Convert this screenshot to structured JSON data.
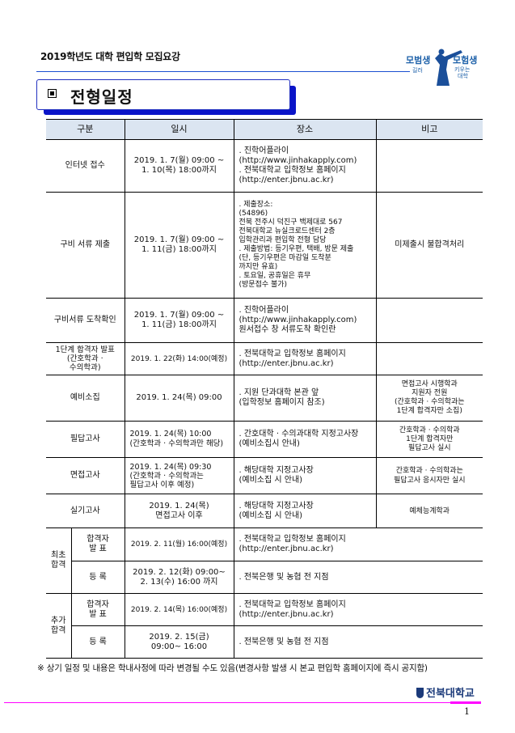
{
  "header": {
    "doc_title": "2019학년도 대학 편입학 모집요강",
    "logo_text": "모범생 길러 모험생 키우는 대학"
  },
  "section": {
    "title": "전형일정"
  },
  "table": {
    "headers": [
      "구분",
      "일시",
      "장소",
      "비고"
    ],
    "rows": [
      {
        "category": "인터넷 접수",
        "date": "2019. 1. 7(월) 09:00 ~\n1. 10(목) 18:00까지",
        "place": ". 진학어플라이\n (http://www.jinhakapply.com)\n. 전북대학교 입학정보 홈페이지\n (http://enter.jbnu.ac.kr)",
        "note": ""
      },
      {
        "category": "구비 서류 제출",
        "date": "2019. 1. 7(월) 09:00 ~\n1. 11(금) 18:00까지",
        "place": ". 제출장소:\n (54896)\n전북 전주시 덕진구 백제대로 567\n전북대학교 뉴실크로드센터 2층\n입학관리과 편입학 전형 담당\n. 제출방법: 등기우편, 택배, 방문 제출\n (단, 등기우편은 마감일 도착분\n  까지만 유효)\n. 토요일, 공휴일은 휴무\n (방문접수 불가)",
        "note": "미제출시 불합격처리"
      },
      {
        "category": "구비서류 도착확인",
        "date": "2019. 1. 7(월) 09:00 ~\n1. 11(금) 18:00까지",
        "place": ". 진학어플라이\n (http://www.jinhakapply.com)\n 원서접수 창 서류도착 확인란",
        "note": ""
      },
      {
        "category": "1단계 합격자 발표\n(간호학과 ·\n수의학과)",
        "date": "2019. 1. 22(화) 14:00(예정)",
        "place": ". 전북대학교 입학정보 홈페이지\n (http://enter.jbnu.ac.kr)",
        "note": ""
      },
      {
        "category": "예비소집",
        "date": "2019. 1. 24(목) 09:00",
        "place": ". 지원 단과대학 본관 앞\n (입학정보 홈페이지 참조)",
        "note": "면접고사 시행학과\n지원자 전원\n(간호학과 · 수의학과는\n1단계 합격자만 소집)"
      },
      {
        "category": "필답고사",
        "date": "2019. 1. 24(목) 10:00\n(간호학과 · 수의학과만 해당)",
        "place": ". 간호대학 · 수의과대학 지정고사장\n (예비소집시 안내)",
        "note": "간호학과 · 수의학과\n1단계 합격자만\n필답고사 실시"
      },
      {
        "category": "면접고사",
        "date": "2019. 1. 24(목) 09:30\n(간호학과 · 수의학과는\n 필답고사 이후 예정)",
        "place": ". 해당대학 지정고사장\n (예비소집 시 안내)",
        "note": "간호학과 · 수의학과는\n필답고사 응시자만 실시"
      },
      {
        "category": "실기고사",
        "date": "2019. 1. 24(목)\n면접고사 이후",
        "place": ". 해당대학 지정고사장\n (예비소집 시 안내)",
        "note": "예체능계학과"
      }
    ],
    "groups": [
      {
        "label": "최초\n합격",
        "items": [
          {
            "sub": "합격자\n발  표",
            "date": "2019. 2. 11(월) 16:00(예정)",
            "place": ". 전북대학교 입학정보 홈페이지\n (http://enter.jbnu.ac.kr)"
          },
          {
            "sub": "등  록",
            "date": "2019. 2. 12(화) 09:00~\n2. 13(수) 16:00 까지",
            "place": ". 전북은행 및 농협 전 지점"
          }
        ]
      },
      {
        "label": "추가\n합격",
        "items": [
          {
            "sub": "합격자\n발  표",
            "date": "2019. 2. 14(목) 16:00(예정)",
            "place": ". 전북대학교 입학정보 홈페이지\n (http://enter.jbnu.ac.kr)"
          },
          {
            "sub": "등  록",
            "date": "2019. 2. 15(금)\n09:00~ 16:00",
            "place": ". 전북은행 및 농협 전 지점"
          }
        ]
      }
    ]
  },
  "footnote": "※ 상기 일정 및 내용은 학내사정에 따라 변경될 수도 있음(변경사항 발생 시 본교 편입학 홈페이지에 즉시 공지함)",
  "footer": {
    "university": "전북대학교",
    "page_number": "1"
  },
  "colors": {
    "accent_blue": "#0a14c8",
    "header_fill": "#dbe5f1",
    "footer_rule": "#ff00ff"
  }
}
